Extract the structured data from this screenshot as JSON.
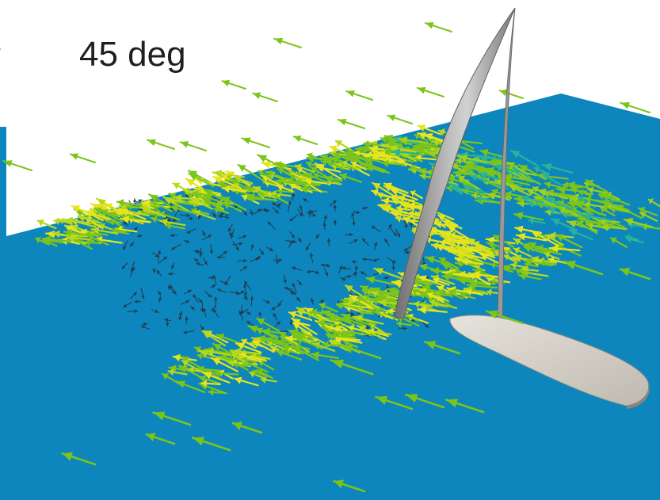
{
  "label": {
    "text": "45 deg"
  },
  "colors": {
    "water": "#0c86bd",
    "water_edge": "#0a78aa",
    "sail": "#8e8e8e",
    "sail_highlight": "#c9c9c9",
    "hull": "#d9d6cf",
    "vector_fast": "#e8e41c",
    "vector_mid": "#7cc41a",
    "vector_slow": "#29b39b",
    "vector_wake": "#233a4a"
  },
  "scene": {
    "subject": "sail-and-hull",
    "field": "velocity-vectors"
  }
}
